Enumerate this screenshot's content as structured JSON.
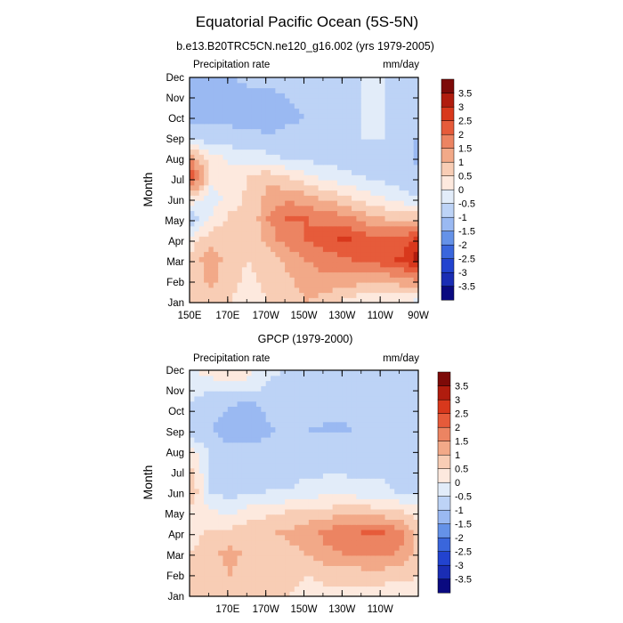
{
  "title": "Equatorial Pacific Ocean (5S-5N)",
  "colors": [
    "#0a0a80",
    "#1a2db4",
    "#2243cf",
    "#3a66dc",
    "#6592e8",
    "#9ab9f2",
    "#bdd3f6",
    "#e2ecf9",
    "#fde9de",
    "#f8cdb5",
    "#f2a988",
    "#ec8462",
    "#e65b3a",
    "#d8381c",
    "#b01c0e",
    "#7d0a08"
  ],
  "chart_data": [
    {
      "type": "heatmap",
      "subtitle": "b.e13.B20TRC5CN.ne120_g16.002 (yrs 1979-2005)",
      "left_label": "Precipitation rate",
      "right_label": "mm/day",
      "ylabel": "Month",
      "months": [
        "Jan",
        "Feb",
        "Mar",
        "Apr",
        "May",
        "Jun",
        "Jul",
        "Aug",
        "Sep",
        "Oct",
        "Nov",
        "Dec"
      ],
      "xticks": [
        "150E",
        "170E",
        "170W",
        "150W",
        "130W",
        "110W",
        "90W"
      ],
      "xlim_lon": [
        150,
        270
      ],
      "colorbar_labels": [
        "-3.5",
        "-3",
        "-2.5",
        "-2",
        "-1.5",
        "-1",
        "-0.5",
        "0",
        "0.5",
        "1",
        "1.5",
        "2",
        "2.5",
        "3",
        "3.5"
      ],
      "anomaly_ctrl": [
        [
          0.8,
          0.6,
          0.5,
          0.4,
          0.5,
          0.8,
          1.0,
          0.8,
          0.4,
          0.2,
          0.1,
          0.1,
          -0.1
        ],
        [
          0.7,
          1.2,
          0.6,
          0.4,
          0.6,
          0.9,
          1.2,
          1.4,
          1.3,
          1.2,
          1.1,
          1.3,
          1.6
        ],
        [
          0.6,
          1.4,
          0.6,
          0.5,
          0.7,
          1.1,
          1.5,
          1.7,
          1.9,
          2.1,
          2.3,
          2.6,
          3.3
        ],
        [
          0.3,
          0.8,
          0.7,
          0.5,
          1.2,
          1.8,
          2.0,
          2.3,
          2.6,
          2.3,
          2.0,
          2.1,
          2.8
        ],
        [
          -1.0,
          0.1,
          0.6,
          0.5,
          1.5,
          2.0,
          2.0,
          1.8,
          1.7,
          1.3,
          1.0,
          0.9,
          0.8
        ],
        [
          0.4,
          -0.4,
          0.3,
          0.6,
          1.2,
          1.4,
          1.2,
          0.9,
          0.6,
          0.3,
          0.0,
          -0.3,
          -0.5
        ],
        [
          2.4,
          0.3,
          0.2,
          0.5,
          0.9,
          0.5,
          0.2,
          -0.1,
          -0.4,
          -0.5,
          -0.6,
          -0.8,
          -1.0
        ],
        [
          1.2,
          0.2,
          -0.1,
          -0.2,
          -0.4,
          -0.6,
          -0.7,
          -0.7,
          -0.7,
          -0.7,
          -0.6,
          -0.8,
          -1.1
        ],
        [
          -0.7,
          -0.9,
          -0.9,
          -0.9,
          -0.9,
          -0.9,
          -0.9,
          -0.9,
          -0.6,
          -0.5,
          -0.5,
          -0.7,
          -1.1
        ],
        [
          -1.3,
          -1.1,
          -1.1,
          -1.2,
          -1.4,
          -1.1,
          -1.0,
          -0.9,
          -0.6,
          -0.5,
          -0.5,
          -0.6,
          -1.0
        ],
        [
          -1.5,
          -1.3,
          -1.2,
          -1.1,
          -1.1,
          -1.0,
          -0.9,
          -0.8,
          -0.6,
          -0.5,
          -0.5,
          -0.6,
          -1.1
        ],
        [
          -1.3,
          -1.1,
          -1.0,
          -0.9,
          -0.9,
          -0.8,
          -0.7,
          -0.7,
          -0.6,
          -0.5,
          -0.5,
          -0.6,
          -0.9
        ]
      ]
    },
    {
      "type": "heatmap",
      "subtitle": "GPCP (1979-2000)",
      "left_label": "Precipitation rate",
      "right_label": "mm/day",
      "ylabel": "Month",
      "months": [
        "Jan",
        "Feb",
        "Mar",
        "Apr",
        "May",
        "Jun",
        "Jul",
        "Aug",
        "Sep",
        "Oct",
        "Nov",
        "Dec"
      ],
      "xticks": [
        "170E",
        "170W",
        "150W",
        "130W",
        "110W"
      ],
      "xlim_lon": [
        150,
        270
      ],
      "colorbar_labels": [
        "-3.5",
        "-3",
        "-2.5",
        "-2",
        "-1.5",
        "-1",
        "-0.5",
        "0",
        "0.5",
        "1",
        "1.5",
        "2",
        "2.5",
        "3",
        "3.5"
      ],
      "anomaly_gpcp": [
        [
          0.5,
          0.7,
          0.9,
          0.8,
          0.6,
          0.5,
          0.4,
          0.4,
          0.3,
          0.3,
          0.2,
          0.2,
          0.2
        ],
        [
          0.6,
          0.9,
          1.0,
          0.8,
          0.6,
          0.6,
          0.5,
          0.6,
          0.7,
          0.8,
          0.8,
          0.7,
          0.5
        ],
        [
          0.5,
          0.9,
          1.1,
          0.9,
          0.7,
          0.8,
          1.0,
          1.4,
          1.5,
          1.6,
          1.6,
          1.4,
          0.6
        ],
        [
          0.3,
          0.6,
          0.7,
          0.8,
          0.9,
          1.1,
          1.3,
          1.6,
          1.9,
          2.0,
          2.0,
          1.7,
          0.7
        ],
        [
          0.2,
          0.1,
          -0.2,
          0.2,
          0.4,
          0.5,
          0.6,
          0.7,
          0.8,
          0.8,
          0.7,
          0.5,
          0.2
        ],
        [
          0.9,
          -0.6,
          -0.7,
          -0.6,
          -0.5,
          -0.5,
          -0.3,
          -0.2,
          -0.2,
          -0.3,
          -0.4,
          -0.6,
          -0.6
        ],
        [
          0.5,
          -0.6,
          -0.7,
          -0.8,
          -0.8,
          -0.7,
          -0.6,
          -0.6,
          -0.6,
          -0.6,
          -0.6,
          -0.7,
          -0.8
        ],
        [
          0.1,
          -0.6,
          -0.8,
          -0.8,
          -0.8,
          -0.8,
          -0.7,
          -0.7,
          -0.7,
          -0.7,
          -0.6,
          -0.7,
          -1.0
        ],
        [
          -1.0,
          -1.0,
          -1.4,
          -1.5,
          -1.1,
          -0.9,
          -1.0,
          -1.1,
          -1.1,
          -0.9,
          -0.7,
          -0.7,
          -0.9
        ],
        [
          -0.6,
          -0.7,
          -1.1,
          -1.3,
          -0.9,
          -0.7,
          -0.7,
          -0.8,
          -0.8,
          -0.7,
          -0.6,
          -0.7,
          -0.9
        ],
        [
          -0.4,
          -0.5,
          -0.5,
          -0.4,
          -0.6,
          -0.6,
          -0.6,
          -0.6,
          -0.6,
          -0.6,
          -0.6,
          -0.6,
          -0.6
        ],
        [
          -0.1,
          0.4,
          0.8,
          0.3,
          -0.4,
          -0.5,
          -0.6,
          -0.6,
          -0.6,
          -0.6,
          -0.6,
          -0.6,
          -0.6
        ]
      ]
    }
  ]
}
